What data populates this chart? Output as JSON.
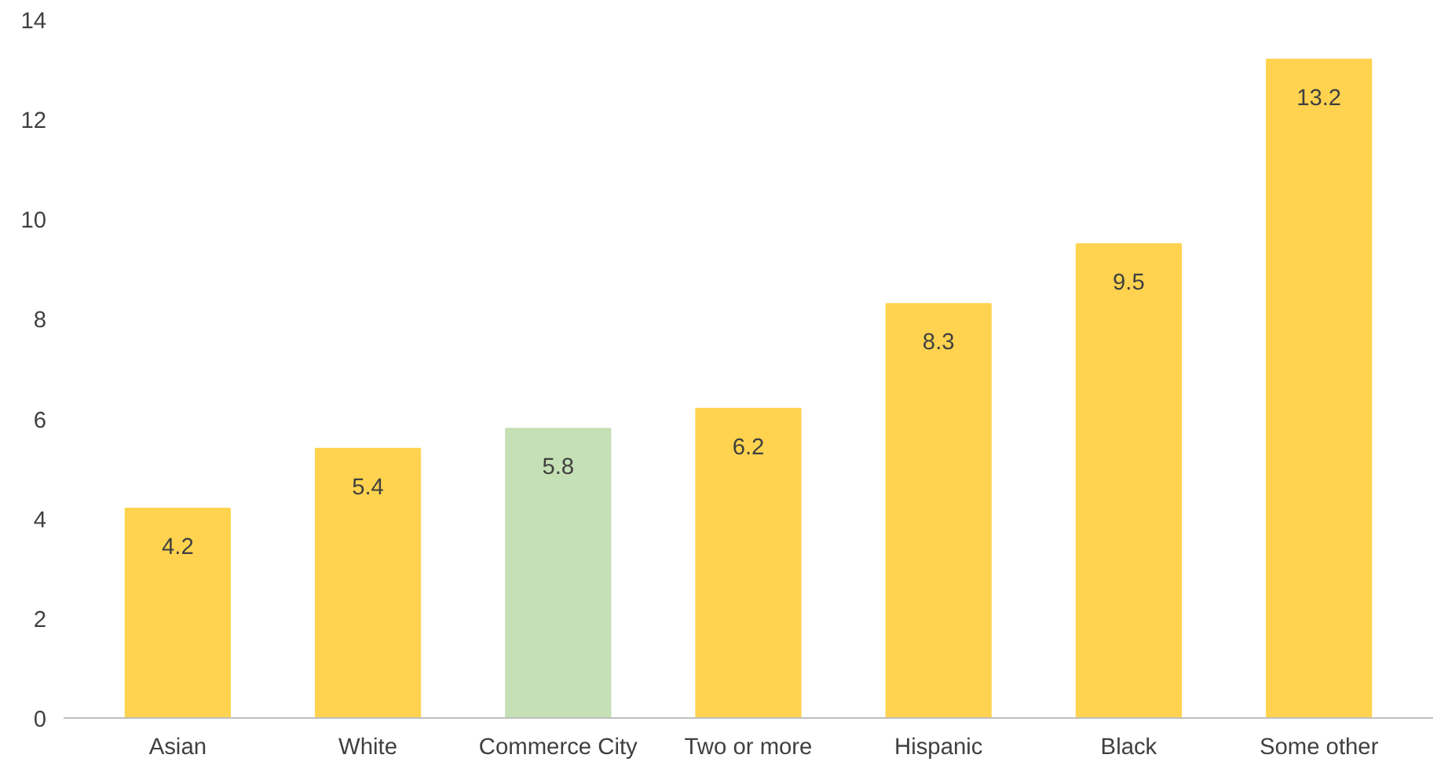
{
  "chart_data": {
    "type": "bar",
    "categories": [
      "Asian",
      "White",
      "Commerce City",
      "Two or more",
      "Hispanic",
      "Black",
      "Some other"
    ],
    "values": [
      4.2,
      5.4,
      5.8,
      6.2,
      8.3,
      9.5,
      13.2
    ],
    "colors": [
      "#ffd34f",
      "#ffd34f",
      "#c5e0b4",
      "#ffd34f",
      "#ffd34f",
      "#ffd34f",
      "#ffd34f"
    ],
    "ylim": [
      0,
      14
    ],
    "yticks": [
      0,
      2,
      4,
      6,
      8,
      10,
      12,
      14
    ],
    "data_labels": true,
    "grid": false
  }
}
